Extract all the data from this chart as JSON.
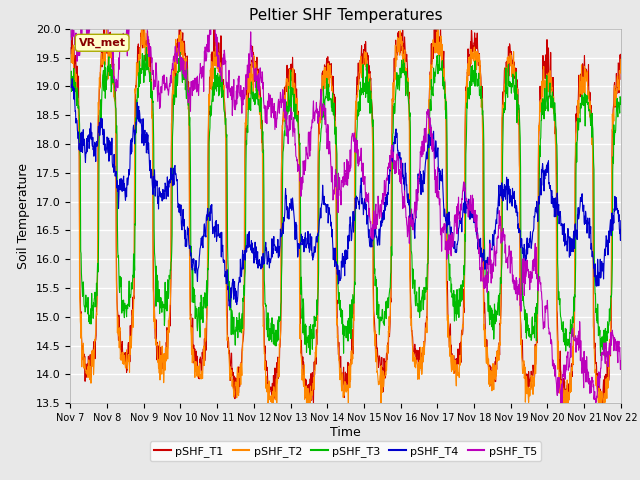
{
  "title": "Peltier SHF Temperatures",
  "xlabel": "Time",
  "ylabel": "Soil Temperature",
  "ylim": [
    13.5,
    20.0
  ],
  "annotation": "VR_met",
  "series": [
    "pSHF_T1",
    "pSHF_T2",
    "pSHF_T3",
    "pSHF_T4",
    "pSHF_T5"
  ],
  "colors": [
    "#cc0000",
    "#ff8800",
    "#00bb00",
    "#0000cc",
    "#bb00bb"
  ],
  "xtick_labels": [
    "Nov 7",
    "Nov 8",
    "Nov 9",
    "Nov 10",
    "Nov 11",
    "Nov 12",
    "Nov 13",
    "Nov 14",
    "Nov 15",
    "Nov 16",
    "Nov 17",
    "Nov 18",
    "Nov 19",
    "Nov 20",
    "Nov 21",
    "Nov 22"
  ],
  "bg_color": "#e8e8e8",
  "plot_bg": "#ebebeb",
  "linewidth": 0.8,
  "n_points": 1500,
  "n_days": 15
}
